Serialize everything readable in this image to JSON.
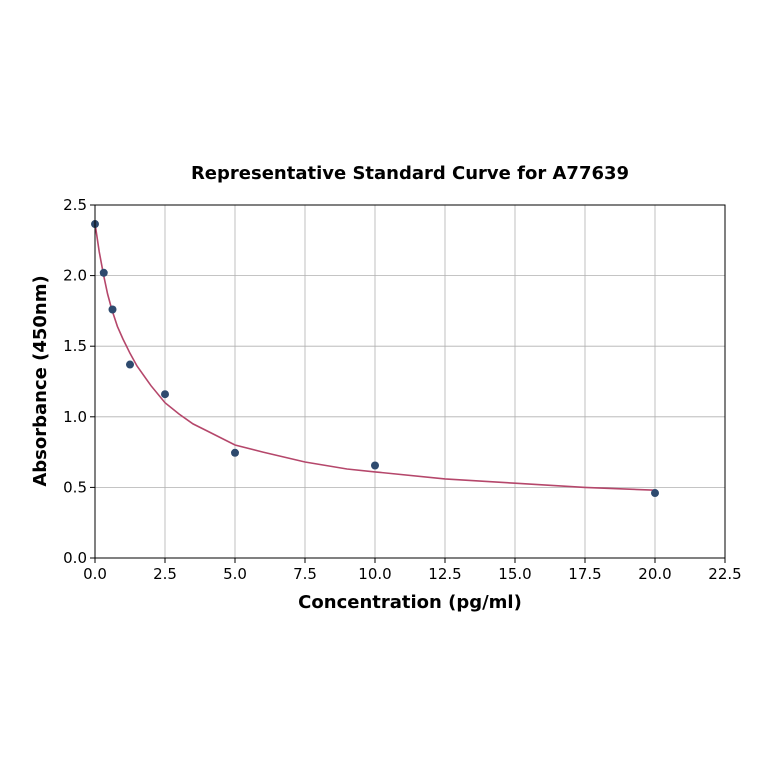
{
  "chart_data": {
    "type": "scatter",
    "title": "Representative Standard Curve for A77639",
    "xlabel": "Concentration (pg/ml)",
    "ylabel": "Absorbance (450nm)",
    "xlim": [
      0,
      22.5
    ],
    "ylim": [
      0,
      2.5
    ],
    "grid": true,
    "x_ticks": [
      "0.0",
      "2.5",
      "5.0",
      "7.5",
      "10.0",
      "12.5",
      "15.0",
      "17.5",
      "20.0",
      "22.5"
    ],
    "y_ticks": [
      "0.0",
      "0.5",
      "1.0",
      "1.5",
      "2.0",
      "2.5"
    ],
    "point_color": "#2e4a6e",
    "curve_color": "#b5476b",
    "points": {
      "x": [
        0,
        0.3125,
        0.625,
        1.25,
        2.5,
        5,
        10,
        20
      ],
      "y": [
        2.365,
        2.02,
        1.76,
        1.37,
        1.16,
        0.745,
        0.655,
        0.46
      ]
    },
    "fit_curve": {
      "x": [
        0,
        0.15,
        0.3,
        0.45,
        0.6,
        0.8,
        1.0,
        1.25,
        1.5,
        2.0,
        2.5,
        3.0,
        3.5,
        4.0,
        5.0,
        6.0,
        7.5,
        9.0,
        10.0,
        12.5,
        15.0,
        17.5,
        20.0
      ],
      "y": [
        2.37,
        2.17,
        2.01,
        1.87,
        1.76,
        1.64,
        1.55,
        1.45,
        1.36,
        1.22,
        1.1,
        1.02,
        0.95,
        0.9,
        0.8,
        0.75,
        0.68,
        0.63,
        0.61,
        0.56,
        0.53,
        0.5,
        0.48
      ]
    }
  }
}
